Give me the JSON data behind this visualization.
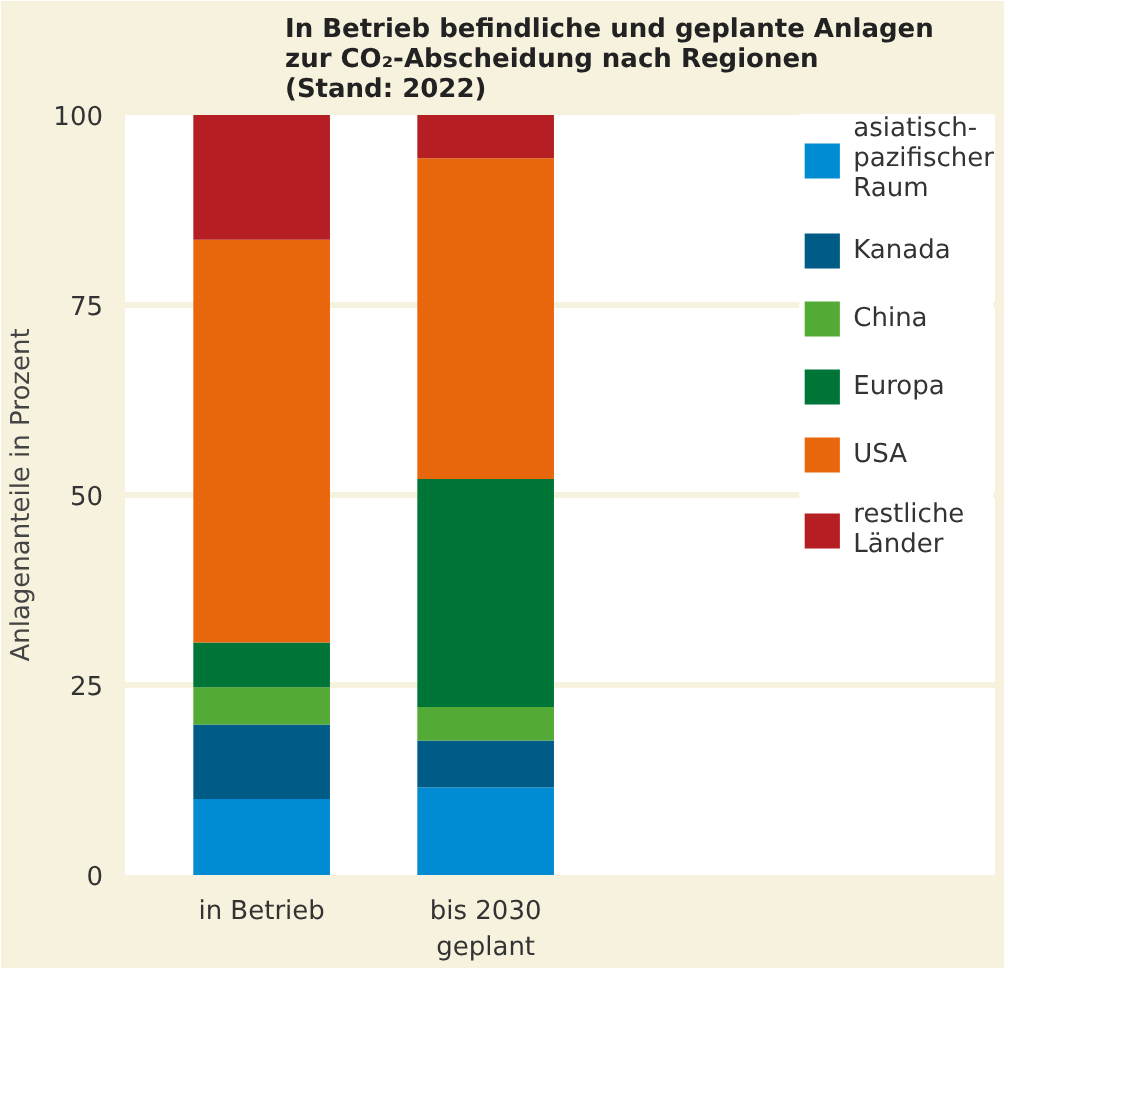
{
  "chart_data": {
    "type": "bar",
    "stacked": true,
    "title": "In Betrieb befindliche und geplante Anlagen zur CO₂-Abscheidung nach Regionen (Stand: 2022)",
    "ylabel": "Anlagenanteile in Prozent",
    "categories": [
      "in Betrieb",
      "bis 2030 geplant"
    ],
    "series": [
      {
        "name": "asiatisch-pazifischer Raum",
        "color": "#008bd2",
        "values": [
          10,
          11.5
        ]
      },
      {
        "name": "Kanada",
        "color": "#005c87",
        "values": [
          9.8,
          6.2
        ]
      },
      {
        "name": "China",
        "color": "#53ab35",
        "values": [
          4.9,
          4.4
        ]
      },
      {
        "name": "Europa",
        "color": "#007538",
        "values": [
          5.9,
          30
        ]
      },
      {
        "name": "USA",
        "color": "#e9670c",
        "values": [
          53,
          42.2
        ]
      },
      {
        "name": "restliche Länder",
        "color": "#b51f24",
        "values": [
          16.4,
          5.7
        ]
      }
    ],
    "ylim": [
      0,
      100
    ],
    "yticks": [
      0,
      25,
      50,
      75,
      100
    ],
    "grid": "y",
    "legend": "right"
  }
}
